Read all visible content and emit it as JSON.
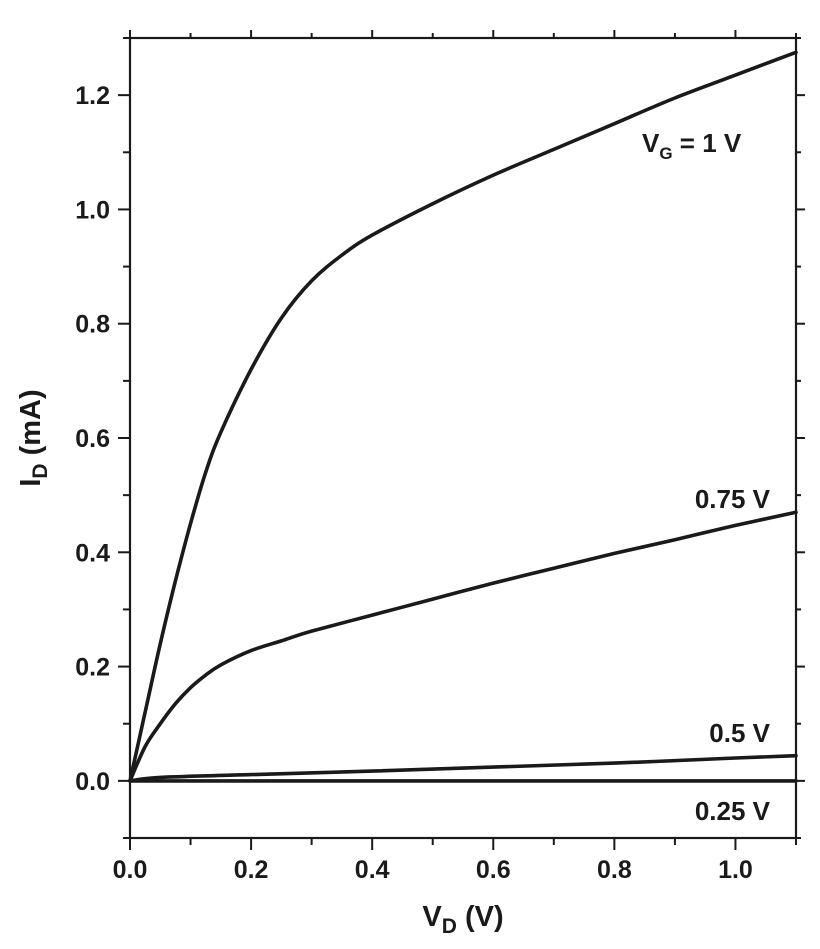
{
  "chart_data": {
    "type": "line",
    "title": "",
    "xlabel": {
      "main": "V",
      "sub": "D",
      "rest": " (V)"
    },
    "ylabel": {
      "main": "I",
      "sub": "D",
      "rest": " (mA)"
    },
    "xlim": [
      0.0,
      1.1
    ],
    "ylim": [
      -0.1,
      1.3
    ],
    "x_ticks": [
      "0.0",
      "0.2",
      "0.4",
      "0.6",
      "0.8",
      "1.0"
    ],
    "x_tick_values": [
      0.0,
      0.2,
      0.4,
      0.6,
      0.8,
      1.0
    ],
    "y_ticks": [
      "0.0",
      "0.2",
      "0.4",
      "0.6",
      "0.8",
      "1.0",
      "1.2"
    ],
    "y_tick_values": [
      0.0,
      0.2,
      0.4,
      0.6,
      0.8,
      1.0,
      1.2
    ],
    "grid": false,
    "series": [
      {
        "name": "1",
        "label": {
          "main": "V",
          "sub": "G",
          "rest": " = 1 V"
        },
        "x": [
          0.0,
          0.025,
          0.05,
          0.075,
          0.1,
          0.125,
          0.15,
          0.2,
          0.25,
          0.3,
          0.35,
          0.4,
          0.5,
          0.6,
          0.7,
          0.8,
          0.9,
          1.0,
          1.1
        ],
        "y": [
          0.0,
          0.12,
          0.24,
          0.35,
          0.45,
          0.54,
          0.61,
          0.72,
          0.81,
          0.875,
          0.92,
          0.955,
          1.01,
          1.06,
          1.105,
          1.15,
          1.195,
          1.235,
          1.275
        ]
      },
      {
        "name": "0.75 V",
        "label": {
          "main": "0.75 V",
          "sub": "",
          "rest": ""
        },
        "x": [
          0.0,
          0.025,
          0.05,
          0.075,
          0.1,
          0.125,
          0.15,
          0.2,
          0.25,
          0.3,
          0.4,
          0.5,
          0.6,
          0.7,
          0.8,
          0.9,
          1.0,
          1.1
        ],
        "y": [
          0.0,
          0.06,
          0.1,
          0.135,
          0.163,
          0.185,
          0.203,
          0.228,
          0.245,
          0.262,
          0.29,
          0.318,
          0.346,
          0.372,
          0.398,
          0.422,
          0.447,
          0.47
        ]
      },
      {
        "name": "0.5 V",
        "label": {
          "main": "0.5 V",
          "sub": "",
          "rest": ""
        },
        "x": [
          0.0,
          0.05,
          0.2,
          0.4,
          0.6,
          0.8,
          1.0,
          1.1
        ],
        "y": [
          0.0,
          0.006,
          0.011,
          0.017,
          0.024,
          0.031,
          0.04,
          0.044
        ]
      },
      {
        "name": "0.25 V",
        "label": {
          "main": "0.25 V",
          "sub": "",
          "rest": ""
        },
        "x": [
          0.0,
          0.5,
          1.1
        ],
        "y": [
          0.0,
          0.0,
          0.0
        ]
      }
    ]
  }
}
